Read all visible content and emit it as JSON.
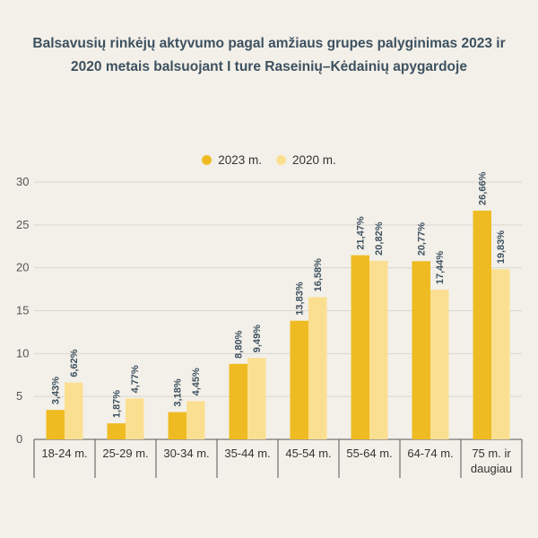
{
  "colors": {
    "background": "#f3f0e9",
    "series_2023": "#efbb22",
    "series_2020": "#fbdf91",
    "grid": "#d9d6d0",
    "text_value": "#3d5160"
  },
  "chart_data": {
    "type": "bar",
    "title": "Balsavusių rinkėjų aktyvumo pagal amžiaus grupes palyginimas 2023 ir 2020 metais balsuojant I ture Raseinių–Kėdainių apygardoje",
    "categories": [
      [
        "18-24 m."
      ],
      [
        "25-29 m."
      ],
      [
        "30-34 m."
      ],
      [
        "35-44 m."
      ],
      [
        "45-54 m."
      ],
      [
        "55-64 m."
      ],
      [
        "64-74 m."
      ],
      [
        "75 m. ir",
        "daugiau"
      ]
    ],
    "series": [
      {
        "name": "2023 m.",
        "values": [
          3.43,
          1.87,
          3.18,
          8.8,
          13.83,
          21.47,
          20.77,
          26.66
        ],
        "labels": [
          "3,43%",
          "1,87%",
          "3,18%",
          "8,80%",
          "13,83%",
          "21,47%",
          "20,77%",
          "26,66%"
        ]
      },
      {
        "name": "2020 m.",
        "values": [
          6.62,
          4.77,
          4.45,
          9.49,
          16.58,
          20.82,
          17.44,
          19.83
        ],
        "labels": [
          "6,62%",
          "4,77%",
          "4,45%",
          "9,49%",
          "16,58%",
          "20,82%",
          "17,44%",
          "19,83%"
        ]
      }
    ],
    "ylim": [
      0,
      30
    ],
    "yticks": [
      0,
      5,
      10,
      15,
      20,
      25,
      30
    ],
    "grid": true,
    "legend_position": "top-center"
  }
}
